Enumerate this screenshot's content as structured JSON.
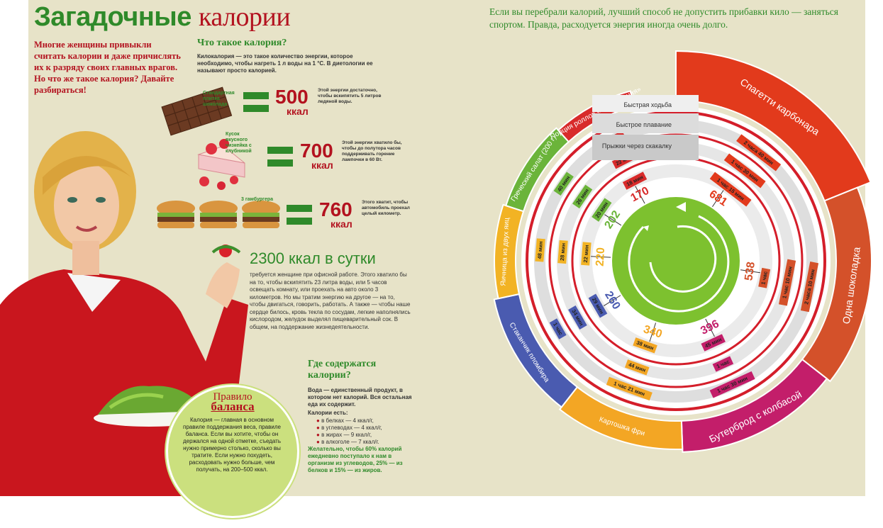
{
  "title": {
    "part1": "Загадочные",
    "part2": "калории"
  },
  "intro": "Многие женщины привыкли считать калории и даже причислять их к разряду своих главных врагов. Но что же такое калория? Давайте разбираться!",
  "what_is": {
    "heading": "Что такое калория?",
    "text": "Килокалория — это такое количество энергии, которое необходимо, чтобы нагреть 1 л воды на 1 °С. В диетологии ее называют просто калорией."
  },
  "examples": [
    {
      "food_label": "Стандартная плитка шоколада",
      "value": "500",
      "unit": "ккал",
      "note": "Этой энергии достаточно, чтобы вскипятить 5 литров ледяной воды."
    },
    {
      "food_label": "Кусок вкусного чизкейка с клубникой",
      "value": "700",
      "unit": "ккал",
      "note": "Этой энергии хватило бы, чтобы до полутора часов поддерживать горение лампочки в 60 Вт."
    },
    {
      "food_label": "3 гамбургера",
      "value": "760",
      "unit": "ккал",
      "note": "Этого хватит, чтобы автомобиль проехал целый километр."
    }
  ],
  "daily": {
    "heading": "2300 ккал в сутки",
    "text": "требуется женщине при офисной работе. Этого хватило бы на то, чтобы вскипятить 23 литра воды, или 5 часов освещать комнату, или проехать на авто около 3 километров. Но мы тратим энергию на другое — на то, чтобы двигаться, говорить, работать. А также — чтобы наше сердце билось, кровь текла по сосудам, легкие наполнялись кислородом, желудок выделял пищеварительный сок. В общем, на поддержание жизнедеятельности."
  },
  "where": {
    "heading": "Где содержатся калории?",
    "p1": "Вода — единственный продукт, в котором нет калорий. Вся остальная еда их содержит.",
    "p2": "Калории есть:",
    "items": [
      "в белках — 4 ккал/г,",
      "в углеводах — 4 ккал/г,",
      "в жирах — 9 ккал/г,",
      "в алкоголе — 7 ккал/г."
    ],
    "p3": "Желательно, чтобы 60% калорий ежедневно поступало к нам в организм из углеводов, 25% — из белков и 15% — из жиров."
  },
  "rule": {
    "title1": "Правило",
    "title2": "баланса",
    "text": "Калория — главная в основном правиле поддержания веса, правиле баланса. Если вы хотите, чтобы он держался на одной отметке, съедать нужно примерно столько, сколько вы тратите. Если нужно похудеть, расходовать нужно больше, чем получать, на 200–500 ккал."
  },
  "right_intro": "Если вы перебрали калорий, лучший способ не допустить прибавки кило — заняться спортом. Правда, расходуется энергия иногда очень долго.",
  "legend": [
    "Быстрая ходьба",
    "Быстрое плавание",
    "Прыжки через скакалку"
  ],
  "foods": [
    {
      "name": "Спагетти карбонара",
      "kcal": "681",
      "color": "#e23a1c",
      "walk": "2 часа 40 мин",
      "swim": "1 час 30 мин",
      "jump": "1 час 15 мин"
    },
    {
      "name": "Одна шоколадка",
      "kcal": "538",
      "color": "#d4512a",
      "walk": "2 часа 10 мин",
      "swim": "1 час 10 мин",
      "jump": "1 час"
    },
    {
      "name": "Бутерброд с колбасой",
      "kcal": "396",
      "color": "#c31e6a",
      "walk": "1 час 30 мин",
      "swim": "1 час",
      "jump": "45 мин"
    },
    {
      "name": "Картошка фри",
      "kcal": "340",
      "color": "#f3a624",
      "walk": "1 час 21 мин",
      "swim": "44 мин",
      "jump": "38 мин"
    },
    {
      "name": "Стаканчик пломбира",
      "kcal": "260",
      "color": "#4a5bb0",
      "walk": "1 час",
      "swim": "34 мин",
      "jump": "29 мин"
    },
    {
      "name": "Яичница из двух яиц",
      "kcal": "220",
      "color": "#f2b324",
      "walk": "48 мин",
      "swim": "28 мин",
      "jump": "22 мин"
    },
    {
      "name": "Греческий салат (200 г)",
      "kcal": "202",
      "color": "#6bb43a",
      "walk": "40 мин",
      "swim": "26 мин",
      "jump": "20 мин"
    },
    {
      "name": "Порция роллов «Калифорния»",
      "kcal": "170",
      "color": "#d82b2b",
      "walk": "38 мин",
      "swim": "22 мин",
      "jump": "18 мин"
    }
  ],
  "colors": {
    "green": "#2f8a2a",
    "red": "#b3121f",
    "beige": "#e7e3c8",
    "lime": "#7dc12f"
  }
}
